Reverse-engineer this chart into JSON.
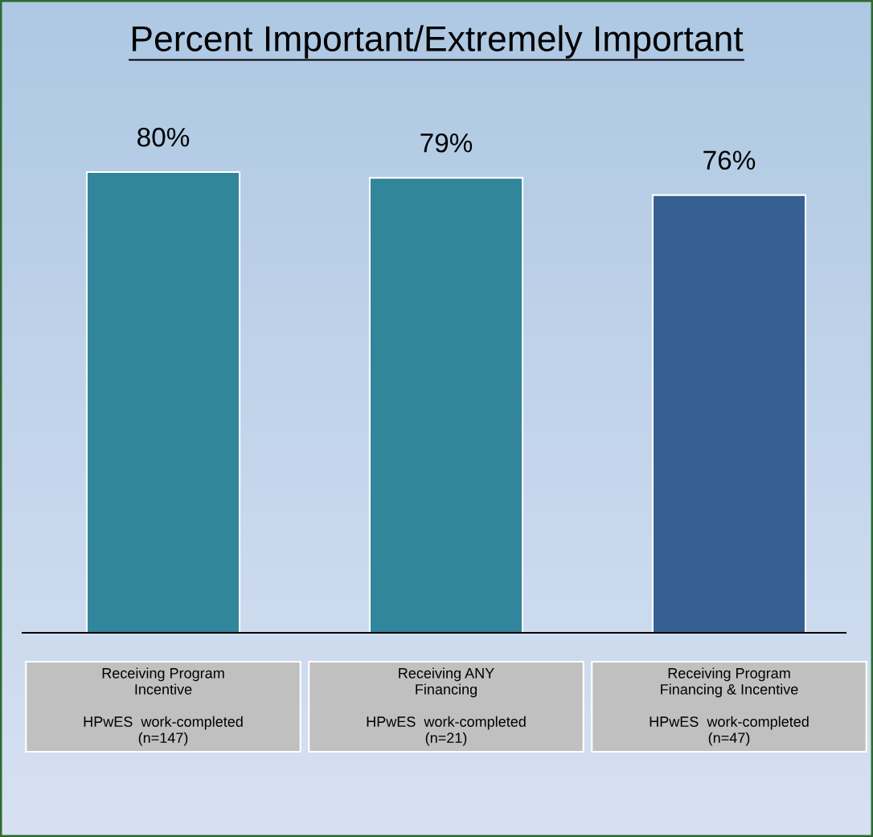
{
  "chart_data": {
    "type": "bar",
    "title": "Percent Important/Extremely Important",
    "categories": [
      "Receiving Program\nIncentive\n\nHPwES  work-completed\n(n=147)",
      "Receiving ANY\nFinancing\n\nHPwES  work-completed\n(n=21)",
      "Receiving Program\nFinancing & Incentive\n\nHPwES  work-completed\n(n=47)"
    ],
    "values": [
      80,
      79,
      76
    ],
    "colors": [
      "#31869b",
      "#31869b",
      "#366092"
    ],
    "value_labels": [
      "80%",
      "79%",
      "76%"
    ]
  }
}
